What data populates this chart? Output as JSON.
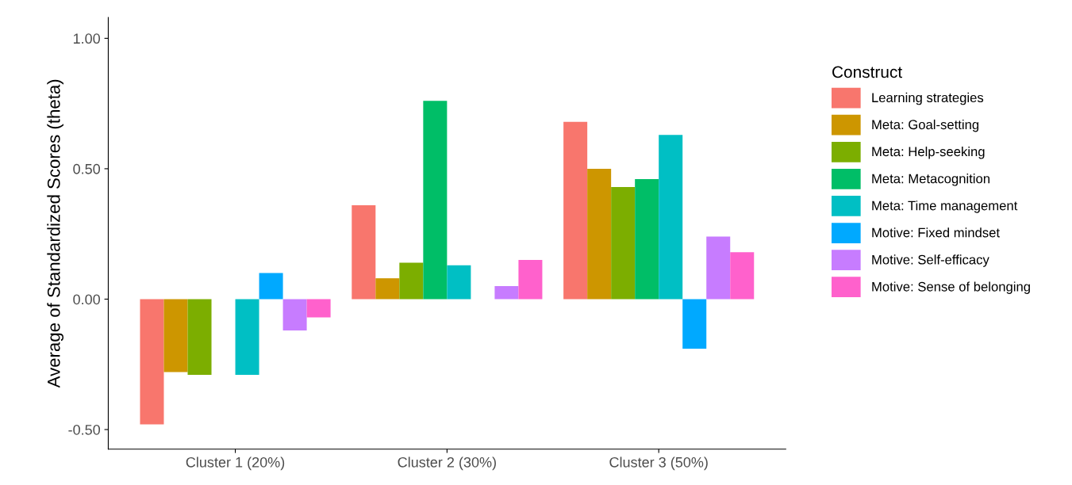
{
  "chart_data": {
    "type": "bar",
    "ylabel": "Average of Standardized Scores (theta)",
    "legend_title": "Construct",
    "legend": "right",
    "grid": false,
    "categories": [
      "Cluster 1 (20%)",
      "Cluster 2 (30%)",
      "Cluster 3 (50%)"
    ],
    "ylim": [
      -0.575,
      1.08
    ],
    "yticks": [
      {
        "value": -0.5,
        "label": "-0.50"
      },
      {
        "value": 0,
        "label": "0.00"
      },
      {
        "value": 0.5,
        "label": "0.50"
      },
      {
        "value": 1,
        "label": "1.00"
      }
    ],
    "series": [
      {
        "name": "Learning strategies",
        "color": "#f8766d",
        "values": [
          -0.48,
          0.36,
          0.68
        ]
      },
      {
        "name": "Meta: Goal-setting",
        "color": "#cd9600",
        "values": [
          -0.28,
          0.08,
          0.5
        ]
      },
      {
        "name": "Meta: Help-seeking",
        "color": "#7cae00",
        "values": [
          -0.29,
          0.14,
          0.43
        ]
      },
      {
        "name": "Meta: Metacognition",
        "color": "#00be67",
        "values": [
          0,
          0.76,
          0.46
        ]
      },
      {
        "name": "Meta: Time management",
        "color": "#00bfc4",
        "values": [
          -0.29,
          0.13,
          0.63
        ]
      },
      {
        "name": "Motive: Fixed mindset",
        "color": "#00a9ff",
        "values": [
          0.1,
          0.0,
          -0.19
        ]
      },
      {
        "name": "Motive: Self-efficacy",
        "color": "#c77cff",
        "values": [
          -0.12,
          0.05,
          0.24
        ]
      },
      {
        "name": "Motive: Sense of belonging",
        "color": "#ff61cc",
        "values": [
          -0.07,
          0.15,
          0.18
        ]
      }
    ]
  }
}
